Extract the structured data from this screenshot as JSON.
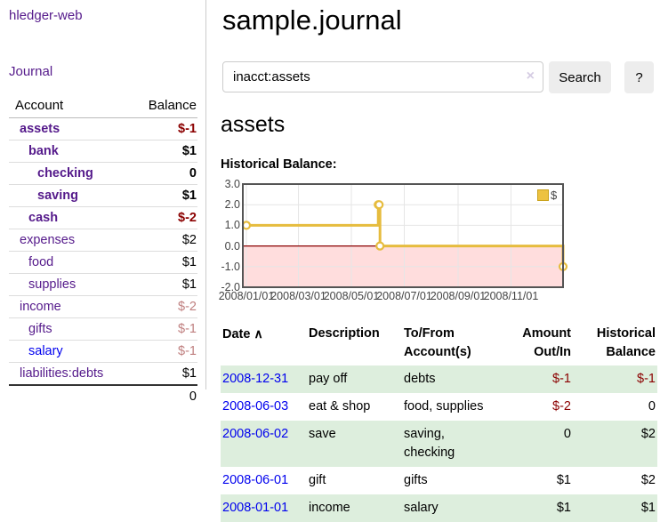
{
  "app": {
    "brand": "hledger-web"
  },
  "sidebar": {
    "journal_link": "Journal",
    "account_header": "Account",
    "balance_header": "Balance",
    "accounts": [
      {
        "name": "assets",
        "balance": "$-1"
      },
      {
        "name": "bank",
        "balance": "$1"
      },
      {
        "name": "checking",
        "balance": "0"
      },
      {
        "name": "saving",
        "balance": "$1"
      },
      {
        "name": "cash",
        "balance": "$-2"
      },
      {
        "name": "expenses",
        "balance": "$2"
      },
      {
        "name": "food",
        "balance": "$1"
      },
      {
        "name": "supplies",
        "balance": "$1"
      },
      {
        "name": "income",
        "balance": "$-2"
      },
      {
        "name": "gifts",
        "balance": "$-1"
      },
      {
        "name": "salary",
        "balance": "$-1"
      },
      {
        "name": "liabilities:debts",
        "balance": "$1"
      }
    ],
    "total": "0"
  },
  "header": {
    "title": "sample.journal"
  },
  "search": {
    "value": "inacct:assets",
    "clear_icon": "×",
    "submit_label": "Search",
    "help_label": "?"
  },
  "account_page": {
    "title": "assets",
    "chart_title": "Historical Balance:"
  },
  "chart_data": {
    "type": "line",
    "step": true,
    "title": "Historical Balance:",
    "series": [
      {
        "name": "$",
        "points": [
          {
            "date": "2008-01-01",
            "value": 1.0
          },
          {
            "date": "2008-06-01",
            "value": 2.0
          },
          {
            "date": "2008-06-02",
            "value": 2.0
          },
          {
            "date": "2008-06-03",
            "value": 0.0
          },
          {
            "date": "2008-12-31",
            "value": -1.0
          }
        ]
      }
    ],
    "x_ticks": [
      "2008/01/01",
      "2008/03/01",
      "2008/05/01",
      "2008/07/01",
      "2008/09/01",
      "2008/11/01"
    ],
    "y_ticks": [
      "3.0",
      "2.0",
      "1.0",
      "0.0",
      "-1.0",
      "-2.0"
    ],
    "ylim": [
      -2.0,
      3.0
    ],
    "legend": {
      "label": "$",
      "position": "top-right",
      "color": "#edc240"
    },
    "grid": true,
    "line_color": "#e6bc3e",
    "marker_fill": "#ffffff",
    "zero_line_color": "#8b0000",
    "negative_region_fill": "#ffdddd",
    "plot_border_color": "#545454",
    "grid_color": "#e6e6e6"
  },
  "register": {
    "columns": {
      "date": "Date",
      "sort_indicator": "∧",
      "description": "Description",
      "tofrom": "To/From Account(s)",
      "amount": "Amount Out/In",
      "balance": "Historical Balance"
    },
    "rows": [
      {
        "date": "2008-12-31",
        "description": "pay off",
        "accounts": "debts",
        "amount": "$-1",
        "balance": "$-1"
      },
      {
        "date": "2008-06-03",
        "description": "eat & shop",
        "accounts": "food, supplies",
        "amount": "$-2",
        "balance": "0"
      },
      {
        "date": "2008-06-02",
        "description": "save",
        "accounts": "saving, checking",
        "amount": "0",
        "balance": "$2"
      },
      {
        "date": "2008-06-01",
        "description": "gift",
        "accounts": "gifts",
        "amount": "$1",
        "balance": "$2"
      },
      {
        "date": "2008-01-01",
        "description": "income",
        "accounts": "salary",
        "amount": "$1",
        "balance": "$1"
      }
    ]
  },
  "colors": {
    "link_purple": "#551a8b",
    "link_blue": "#0000ee",
    "negative_strong": "#8b0000",
    "negative_light": "#bf7f7f",
    "row_green": "#ddeedd"
  }
}
